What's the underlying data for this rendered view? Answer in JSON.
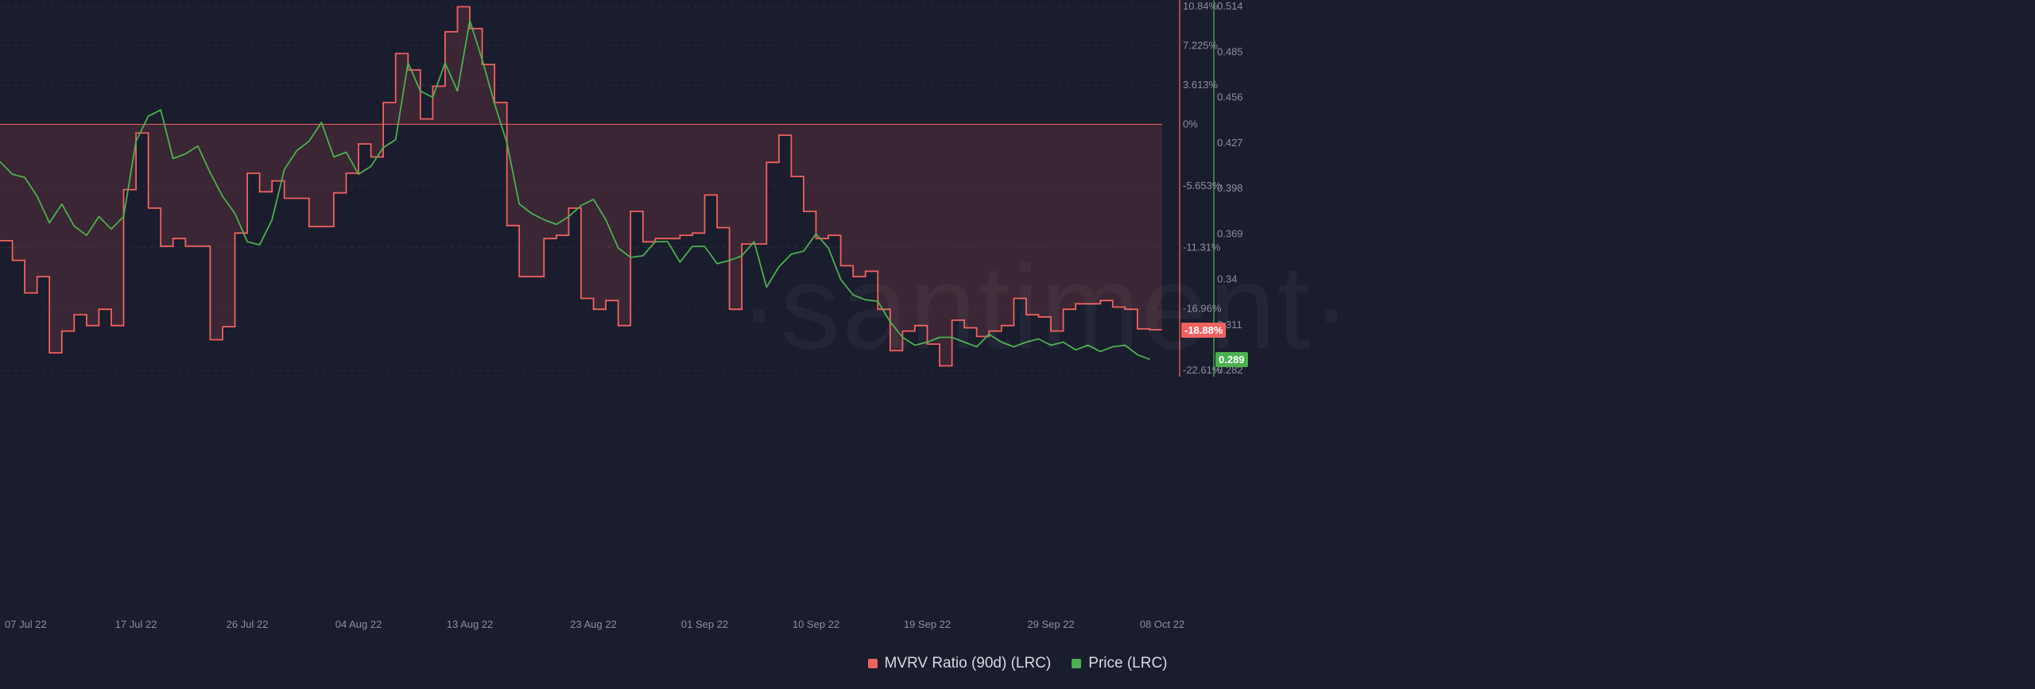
{
  "watermark": "·santiment·",
  "chart_data": {
    "type": "line",
    "x_axis": {
      "start": "2022-07-06",
      "end": "2022-10-08",
      "ticks": [
        "07 Jul 22",
        "17 Jul 22",
        "26 Jul 22",
        "04 Aug 22",
        "13 Aug 22",
        "23 Aug 22",
        "01 Sep 22",
        "10 Sep 22",
        "19 Sep 22",
        "29 Sep 22",
        "08 Oct 22"
      ]
    },
    "axes": {
      "mvrv": {
        "ticks": [
          "10.84%",
          "7.225%",
          "3.613%",
          "0%",
          "-5.653%",
          "-11.31%",
          "-16.96%",
          "-22.61%"
        ],
        "ylim": [
          -22.61,
          10.84
        ],
        "color": "#f0615f"
      },
      "price": {
        "ticks": [
          "0.514",
          "0.485",
          "0.456",
          "0.427",
          "0.398",
          "0.369",
          "0.34",
          "0.311",
          "0.282"
        ],
        "ylim": [
          0.282,
          0.514
        ],
        "color": "#4caf50"
      }
    },
    "series": [
      {
        "name": "MVRV Ratio (90d) (LRC)",
        "color": "#f0615f",
        "style": "step-area",
        "x": [
          "2022-07-06",
          "2022-07-07",
          "2022-07-08",
          "2022-07-09",
          "2022-07-10",
          "2022-07-11",
          "2022-07-12",
          "2022-07-13",
          "2022-07-14",
          "2022-07-15",
          "2022-07-16",
          "2022-07-17",
          "2022-07-18",
          "2022-07-19",
          "2022-07-20",
          "2022-07-21",
          "2022-07-22",
          "2022-07-23",
          "2022-07-24",
          "2022-07-25",
          "2022-07-26",
          "2022-07-27",
          "2022-07-28",
          "2022-07-29",
          "2022-07-30",
          "2022-07-31",
          "2022-08-01",
          "2022-08-02",
          "2022-08-03",
          "2022-08-04",
          "2022-08-05",
          "2022-08-06",
          "2022-08-07",
          "2022-08-08",
          "2022-08-09",
          "2022-08-10",
          "2022-08-11",
          "2022-08-12",
          "2022-08-13",
          "2022-08-14",
          "2022-08-15",
          "2022-08-16",
          "2022-08-17",
          "2022-08-18",
          "2022-08-19",
          "2022-08-20",
          "2022-08-21",
          "2022-08-22",
          "2022-08-23",
          "2022-08-24",
          "2022-08-25",
          "2022-08-26",
          "2022-08-27",
          "2022-08-28",
          "2022-08-29",
          "2022-08-30",
          "2022-08-31",
          "2022-09-01",
          "2022-09-02",
          "2022-09-03",
          "2022-09-04",
          "2022-09-05",
          "2022-09-06",
          "2022-09-07",
          "2022-09-08",
          "2022-09-09",
          "2022-09-10",
          "2022-09-11",
          "2022-09-12",
          "2022-09-13",
          "2022-09-14",
          "2022-09-15",
          "2022-09-16",
          "2022-09-17",
          "2022-09-18",
          "2022-09-19",
          "2022-09-20",
          "2022-09-21",
          "2022-09-22",
          "2022-09-23",
          "2022-09-24",
          "2022-09-25",
          "2022-09-26",
          "2022-09-27",
          "2022-09-28",
          "2022-09-29",
          "2022-09-30",
          "2022-10-01",
          "2022-10-02",
          "2022-10-03",
          "2022-10-04",
          "2022-10-05",
          "2022-10-06",
          "2022-10-07"
        ],
        "y": [
          -10.7,
          -12.5,
          -15.5,
          -14.0,
          -21.0,
          -19.0,
          -17.5,
          -18.5,
          -17.0,
          -18.5,
          -6.0,
          -0.8,
          -7.7,
          -11.2,
          -10.5,
          -11.2,
          -11.2,
          -19.8,
          -18.6,
          -10.0,
          -4.5,
          -6.2,
          -5.2,
          -6.8,
          -6.8,
          -9.4,
          -9.4,
          -6.3,
          -4.5,
          -1.8,
          -3.0,
          2.0,
          6.5,
          5.0,
          0.5,
          3.5,
          8.5,
          10.8,
          8.8,
          5.5,
          2.0,
          -9.3,
          -14.0,
          -14.0,
          -10.5,
          -10.2,
          -7.7,
          -16.0,
          -17.0,
          -16.2,
          -18.5,
          -8.0,
          -10.8,
          -10.5,
          -10.5,
          -10.2,
          -10.0,
          -6.5,
          -9.5,
          -17.0,
          -11.0,
          -11.0,
          -3.5,
          -1.0,
          -4.8,
          -8.0,
          -10.5,
          -10.2,
          -13.0,
          -14.0,
          -13.5,
          -17.0,
          -20.8,
          -19.0,
          -18.5,
          -20.2,
          -22.2,
          -18.0,
          -18.7,
          -19.5,
          -19.0,
          -18.5,
          -16.0,
          -17.5,
          -17.7,
          -19.0,
          -17.0,
          -16.5,
          -16.5,
          -16.2,
          -16.8,
          -17.0,
          -18.8,
          -18.88
        ],
        "label_last": "-18.88%"
      },
      {
        "name": "Price (LRC)",
        "color": "#4caf50",
        "style": "line",
        "x": [
          "2022-07-06",
          "2022-07-07",
          "2022-07-08",
          "2022-07-09",
          "2022-07-10",
          "2022-07-11",
          "2022-07-12",
          "2022-07-13",
          "2022-07-14",
          "2022-07-15",
          "2022-07-16",
          "2022-07-17",
          "2022-07-18",
          "2022-07-19",
          "2022-07-20",
          "2022-07-21",
          "2022-07-22",
          "2022-07-23",
          "2022-07-24",
          "2022-07-25",
          "2022-07-26",
          "2022-07-27",
          "2022-07-28",
          "2022-07-29",
          "2022-07-30",
          "2022-07-31",
          "2022-08-01",
          "2022-08-02",
          "2022-08-03",
          "2022-08-04",
          "2022-08-05",
          "2022-08-06",
          "2022-08-07",
          "2022-08-08",
          "2022-08-09",
          "2022-08-10",
          "2022-08-11",
          "2022-08-12",
          "2022-08-13",
          "2022-08-14",
          "2022-08-15",
          "2022-08-16",
          "2022-08-17",
          "2022-08-18",
          "2022-08-19",
          "2022-08-20",
          "2022-08-21",
          "2022-08-22",
          "2022-08-23",
          "2022-08-24",
          "2022-08-25",
          "2022-08-26",
          "2022-08-27",
          "2022-08-28",
          "2022-08-29",
          "2022-08-30",
          "2022-08-31",
          "2022-09-01",
          "2022-09-02",
          "2022-09-03",
          "2022-09-04",
          "2022-09-05",
          "2022-09-06",
          "2022-09-07",
          "2022-09-08",
          "2022-09-09",
          "2022-09-10",
          "2022-09-11",
          "2022-09-12",
          "2022-09-13",
          "2022-09-14",
          "2022-09-15",
          "2022-09-16",
          "2022-09-17",
          "2022-09-18",
          "2022-09-19",
          "2022-09-20",
          "2022-09-21",
          "2022-09-22",
          "2022-09-23",
          "2022-09-24",
          "2022-09-25",
          "2022-09-26",
          "2022-09-27",
          "2022-09-28",
          "2022-09-29",
          "2022-09-30",
          "2022-10-01",
          "2022-10-02",
          "2022-10-03",
          "2022-10-04",
          "2022-10-05",
          "2022-10-06",
          "2022-10-07"
        ],
        "y": [
          0.415,
          0.407,
          0.405,
          0.393,
          0.376,
          0.388,
          0.374,
          0.368,
          0.38,
          0.372,
          0.38,
          0.428,
          0.444,
          0.448,
          0.417,
          0.42,
          0.425,
          0.408,
          0.393,
          0.382,
          0.364,
          0.362,
          0.378,
          0.41,
          0.422,
          0.428,
          0.44,
          0.418,
          0.421,
          0.407,
          0.412,
          0.424,
          0.429,
          0.478,
          0.46,
          0.456,
          0.478,
          0.46,
          0.505,
          0.48,
          0.452,
          0.427,
          0.388,
          0.382,
          0.378,
          0.375,
          0.38,
          0.387,
          0.391,
          0.378,
          0.36,
          0.354,
          0.355,
          0.364,
          0.364,
          0.351,
          0.361,
          0.361,
          0.35,
          0.352,
          0.355,
          0.364,
          0.335,
          0.348,
          0.356,
          0.358,
          0.369,
          0.36,
          0.34,
          0.33,
          0.327,
          0.326,
          0.313,
          0.303,
          0.298,
          0.3,
          0.303,
          0.303,
          0.3,
          0.297,
          0.305,
          0.3,
          0.297,
          0.3,
          0.302,
          0.298,
          0.3,
          0.295,
          0.298,
          0.294,
          0.297,
          0.298,
          0.292,
          0.289
        ],
        "label_last": "0.289"
      }
    ],
    "legend_position": "bottom-center",
    "grid": true
  }
}
